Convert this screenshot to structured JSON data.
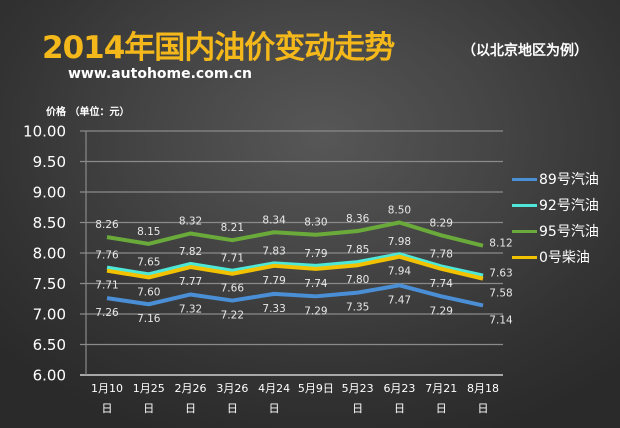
{
  "header": {
    "title": "2014年国内油价变动走势",
    "subtitle": "（以北京地区为例）",
    "url": "www.autohome.com.cn",
    "unit_label": "价格 （单位：元）"
  },
  "chart_data": {
    "type": "line",
    "title": "2014年国内油价变动走势",
    "subtitle": "（以北京地区为例）",
    "ylabel": "价格 （单位：元）",
    "xlabel": "",
    "ylim": [
      6.0,
      10.0
    ],
    "yticks": [
      "10.00",
      "9.50",
      "9.00",
      "8.50",
      "8.00",
      "7.50",
      "7.00",
      "6.50",
      "6.00"
    ],
    "grid": true,
    "legend_position": "right",
    "categories": [
      "1月10日",
      "1月25日",
      "2月26日",
      "3月26日",
      "4月24日",
      "5月9日",
      "5月23日",
      "6月23日",
      "7月21日",
      "8月18日"
    ],
    "category_lines": [
      [
        "1月10",
        "日"
      ],
      [
        "1月25",
        "日"
      ],
      [
        "2月26",
        "日"
      ],
      [
        "3月26",
        "日"
      ],
      [
        "4月24",
        "日"
      ],
      [
        "5月9日",
        ""
      ],
      [
        "5月23",
        "日"
      ],
      [
        "6月23",
        "日"
      ],
      [
        "7月21",
        "日"
      ],
      [
        "8月18",
        "日"
      ]
    ],
    "series": [
      {
        "name": "89号汽油",
        "color": "#4a8fd6",
        "values": [
          7.26,
          7.16,
          7.32,
          7.22,
          7.33,
          7.29,
          7.35,
          7.47,
          7.29,
          7.14
        ],
        "label_pos": "below"
      },
      {
        "name": "92号汽油",
        "color": "#4de8d8",
        "values": [
          7.76,
          7.65,
          7.82,
          7.71,
          7.83,
          7.79,
          7.85,
          7.98,
          7.78,
          7.63
        ],
        "label_pos": "above"
      },
      {
        "name": "95号汽油",
        "color": "#6aaa3a",
        "values": [
          8.26,
          8.15,
          8.32,
          8.21,
          8.34,
          8.3,
          8.36,
          8.5,
          8.29,
          8.12
        ],
        "label_pos": "above"
      },
      {
        "name": "0号柴油",
        "color": "#f2c200",
        "values": [
          7.71,
          7.6,
          7.77,
          7.66,
          7.79,
          7.74,
          7.8,
          7.94,
          7.74,
          7.58
        ],
        "label_pos": "below"
      }
    ]
  }
}
